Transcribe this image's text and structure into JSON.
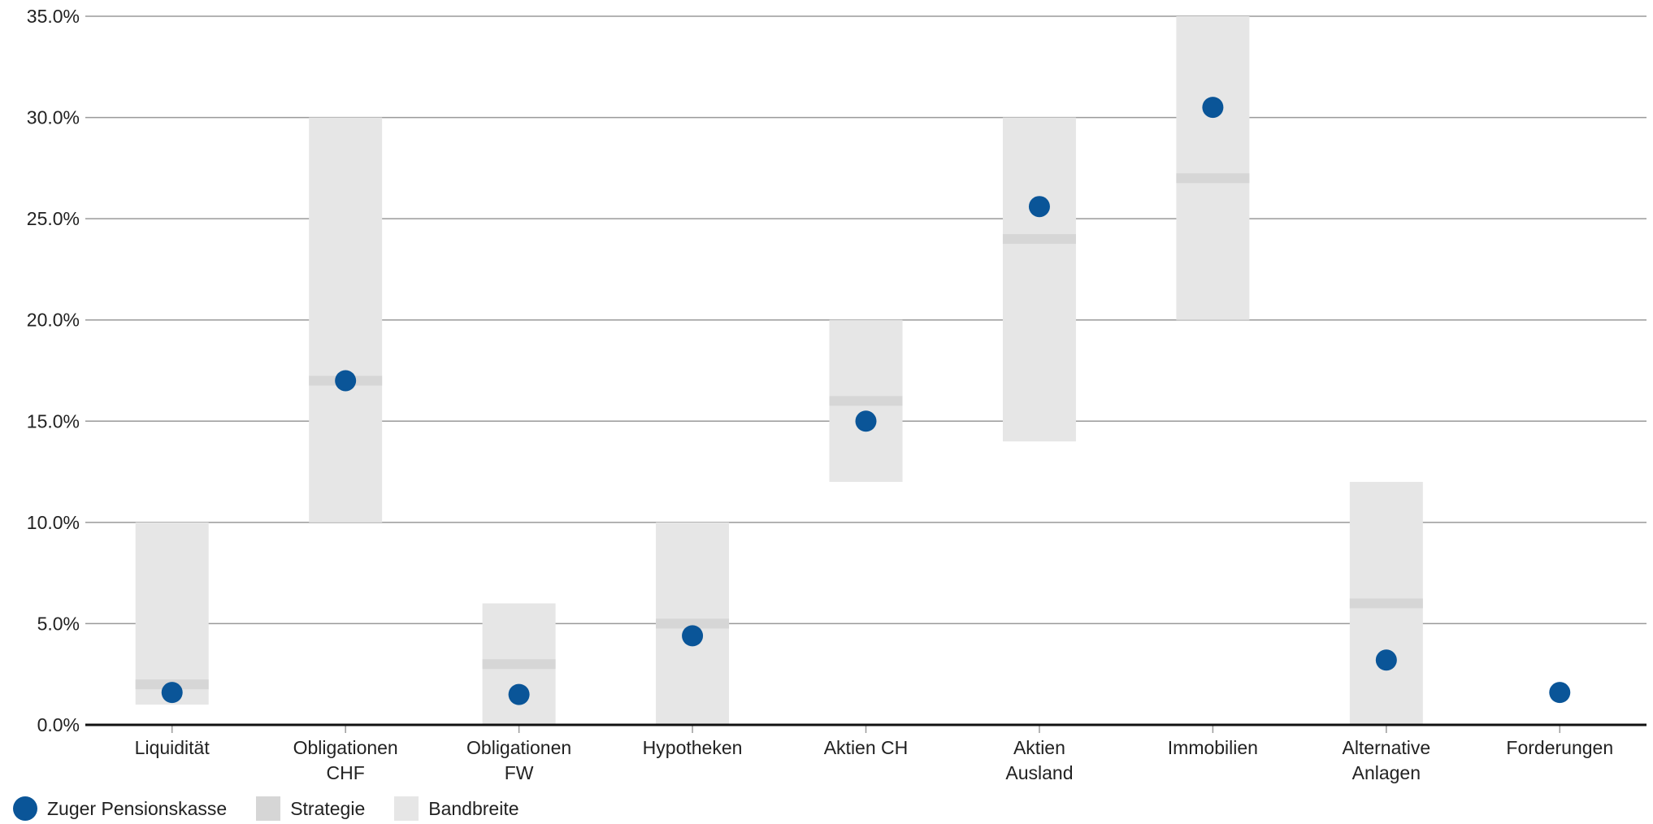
{
  "colors": {
    "actual": "#0a5598",
    "strategy": "#d6d6d6",
    "band": "#e6e6e6",
    "grid": "#9a9a9a",
    "axis": "#111111"
  },
  "chart_data": {
    "type": "range-dot",
    "ylim": [
      0,
      35
    ],
    "yticks": [
      0,
      5,
      10,
      15,
      20,
      25,
      30,
      35
    ],
    "ytick_labels": [
      "0.0%",
      "5.0%",
      "10.0%",
      "15.0%",
      "20.0%",
      "25.0%",
      "30.0%",
      "35.0%"
    ],
    "grid": true,
    "legend_position": "bottom-left",
    "categories": [
      {
        "label_lines": [
          "Liquidität"
        ],
        "band": [
          1,
          10
        ],
        "strategy": 2,
        "actual": 1.6
      },
      {
        "label_lines": [
          "Obligationen",
          "CHF"
        ],
        "band": [
          10,
          30
        ],
        "strategy": 17,
        "actual": 17
      },
      {
        "label_lines": [
          "Obligationen",
          "FW"
        ],
        "band": [
          0,
          6
        ],
        "strategy": 3,
        "actual": 1.5
      },
      {
        "label_lines": [
          "Hypotheken"
        ],
        "band": [
          0,
          10
        ],
        "strategy": 5,
        "actual": 4.4
      },
      {
        "label_lines": [
          "Aktien CH"
        ],
        "band": [
          12,
          20
        ],
        "strategy": 16,
        "actual": 15
      },
      {
        "label_lines": [
          "Aktien",
          "Ausland"
        ],
        "band": [
          14,
          30
        ],
        "strategy": 24,
        "actual": 25.6
      },
      {
        "label_lines": [
          "Immobilien"
        ],
        "band": [
          20,
          35
        ],
        "strategy": 27,
        "actual": 30.5
      },
      {
        "label_lines": [
          "Alternative",
          "Anlagen"
        ],
        "band": [
          0,
          12
        ],
        "strategy": 6,
        "actual": 3.2
      },
      {
        "label_lines": [
          "Forderungen"
        ],
        "band": null,
        "strategy": null,
        "actual": 1.6
      }
    ],
    "series": [
      {
        "name": "Zuger Pensionskasse",
        "kind": "dot"
      },
      {
        "name": "Strategie",
        "kind": "strategy"
      },
      {
        "name": "Bandbreite",
        "kind": "band"
      }
    ]
  },
  "legend": {
    "items": [
      {
        "label": "Zuger Pensionskasse",
        "icon": "circle-dot"
      },
      {
        "label": "Strategie",
        "icon": "square-mid-gray"
      },
      {
        "label": "Bandbreite",
        "icon": "square-light-gray"
      }
    ]
  }
}
